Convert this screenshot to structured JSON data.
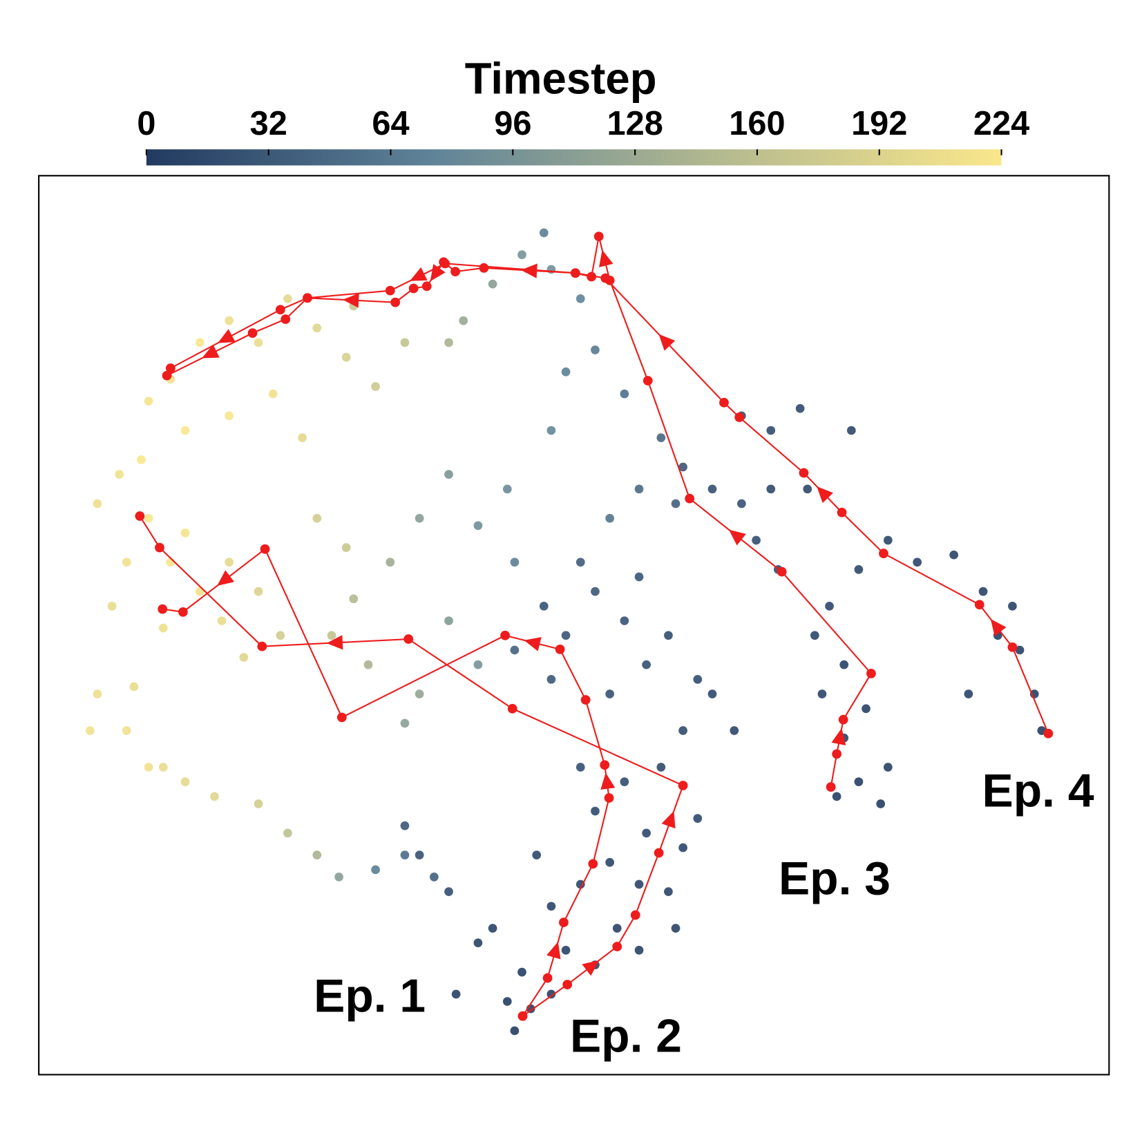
{
  "chart_data": {
    "type": "scatter",
    "colorbar": {
      "label": "Timestep",
      "clim": [
        0,
        224
      ],
      "ticks": [
        0,
        32,
        64,
        96,
        128,
        160,
        192,
        224
      ],
      "colormap": [
        "#223a60",
        "#5f8398",
        "#b3b98f",
        "#fae78b"
      ]
    },
    "xlim": [
      0,
      1462
    ],
    "ylim": [
      0,
      1228
    ],
    "points": {
      "x": [
        650,
        672,
        700,
        640,
        760,
        790,
        820,
        700,
        740,
        860,
        880,
        830,
        760,
        800,
        850,
        900,
        680,
        620,
        570,
        600,
        720,
        780,
        820,
        870,
        660,
        560,
        520,
        500,
        740,
        880,
        690,
        720,
        760,
        800,
        830,
        860,
        900,
        780,
        700,
        650,
        740,
        820,
        920,
        950,
        1090,
        1120,
        1150,
        1160,
        1100,
        1070,
        1060,
        1100,
        1130,
        1080,
        1010,
        980,
        960,
        920,
        880,
        1000,
        1370,
        1360,
        1340,
        1310,
        1330,
        1290,
        1270,
        1250,
        1160,
        1120,
        1050,
        1000,
        960,
        1040,
        1110,
        1200,
        850,
        800,
        760,
        720,
        870,
        820,
        780,
        700,
        740,
        700,
        690,
        660,
        620,
        580,
        560,
        560,
        600,
        640,
        520,
        480,
        430,
        400,
        450,
        520,
        600,
        560,
        650,
        500,
        420,
        380,
        180,
        220,
        260,
        300,
        340,
        380,
        420,
        460,
        500,
        260,
        200,
        320,
        430,
        150,
        360,
        80,
        110,
        140,
        150,
        180,
        220,
        250,
        200,
        120,
        100,
        260,
        300,
        330,
        280,
        170,
        70,
        80,
        130,
        120,
        170,
        200,
        240,
        300,
        340,
        380,
        410,
        460,
        500,
        540,
        150
      ],
      "y": [
        60,
        90,
        110,
        100,
        150,
        200,
        170,
        230,
        260,
        250,
        310,
        330,
        360,
        400,
        420,
        350,
        300,
        200,
        110,
        180,
        170,
        290,
        260,
        200,
        140,
        250,
        300,
        340,
        420,
        470,
        640,
        600,
        660,
        620,
        560,
        600,
        540,
        520,
        540,
        580,
        700,
        680,
        520,
        470,
        380,
        400,
        370,
        420,
        460,
        520,
        600,
        560,
        500,
        640,
        690,
        730,
        780,
        800,
        830,
        800,
        470,
        520,
        580,
        600,
        640,
        660,
        520,
        710,
        730,
        690,
        800,
        880,
        900,
        910,
        880,
        700,
        870,
        930,
        990,
        960,
        780,
        800,
        760,
        880,
        1060,
        1100,
        1150,
        1120,
        1080,
        1030,
        1000,
        820,
        750,
        800,
        760,
        700,
        650,
        600,
        560,
        520,
        560,
        620,
        700,
        480,
        720,
        760,
        950,
        1000,
        1030,
        1000,
        1060,
        1020,
        980,
        940,
        1000,
        900,
        880,
        930,
        1050,
        920,
        870,
        780,
        820,
        840,
        760,
        700,
        660,
        620,
        740,
        700,
        640,
        700,
        660,
        600,
        570,
        610,
        470,
        520,
        530,
        470,
        420,
        400,
        380,
        370,
        330,
        300,
        270,
        280,
        300,
        270,
        420
      ],
      "timestep": [
        3,
        4,
        5,
        3,
        8,
        9,
        7,
        10,
        12,
        10,
        12,
        14,
        15,
        18,
        16,
        13,
        14,
        9,
        6,
        8,
        6,
        11,
        10,
        9,
        5,
        20,
        24,
        30,
        22,
        18,
        25,
        28,
        30,
        26,
        22,
        20,
        18,
        24,
        32,
        40,
        35,
        28,
        15,
        12,
        5,
        4,
        3,
        6,
        8,
        10,
        12,
        9,
        7,
        14,
        18,
        20,
        24,
        22,
        28,
        16,
        3,
        4,
        6,
        5,
        7,
        8,
        9,
        10,
        12,
        14,
        14,
        18,
        20,
        16,
        13,
        11,
        45,
        55,
        65,
        70,
        38,
        48,
        60,
        80,
        75,
        90,
        70,
        95,
        110,
        125,
        140,
        100,
        90,
        85,
        110,
        130,
        150,
        165,
        140,
        120,
        95,
        105,
        70,
        115,
        170,
        180,
        215,
        220,
        210,
        205,
        200,
        195,
        185,
        175,
        165,
        222,
        224,
        215,
        170,
        218,
        200,
        210,
        215,
        224,
        222,
        220,
        215,
        205,
        218,
        212,
        205,
        200,
        190,
        180,
        195,
        210,
        215,
        210,
        205,
        212,
        205,
        200,
        195,
        180,
        160,
        140,
        110,
        70,
        50,
        40,
        215
      ]
    },
    "episodes": [
      {
        "name": "Ep. 1",
        "color": "#ee1c1c",
        "x": [
          661,
          695,
          717,
          757,
          779,
          773,
          747,
          712,
          637,
          414,
          309,
          197,
          169
        ],
        "y": [
          80,
          132,
          208,
          288,
          378,
          423,
          512,
          581,
          600,
          488,
          718,
          632,
          636
        ]
      },
      {
        "name": "Ep. 2",
        "color": "#ee1c1c",
        "x": [
          661,
          722,
          790,
          815,
          847,
          880,
          647,
          505,
          305,
          165,
          138
        ],
        "y": [
          80,
          123,
          175,
          218,
          303,
          395,
          500,
          595,
          585,
          720,
          763
        ]
      },
      {
        "name": "Ep. 3",
        "color": "#ee1c1c",
        "x": [
          1082,
          1090,
          1099,
          1137,
          1015,
          889,
          832,
          780,
          765,
          755,
          733,
          608,
          569,
          553,
          530,
          512,
          487,
          367,
          337,
          292,
          175
        ],
        "y": [
          393,
          438,
          485,
          548,
          687,
          787,
          948,
          1085,
          1145,
          1090,
          1095,
          1102,
          1097,
          1110,
          1077,
          1074,
          1055,
          1061,
          1032,
          1013,
          955
        ]
      },
      {
        "name": "Ep. 4",
        "color": "#ee1c1c",
        "x": [
          1379,
          1330,
          1285,
          1154,
          1097,
          1045,
          957,
          936,
          774,
          733,
          555,
          480,
          367,
          330,
          180
        ],
        "y": [
          466,
          584,
          642,
          712,
          768,
          822,
          898,
          918,
          1088,
          1095,
          1108,
          1071,
          1061,
          1045,
          965
        ]
      }
    ]
  }
}
